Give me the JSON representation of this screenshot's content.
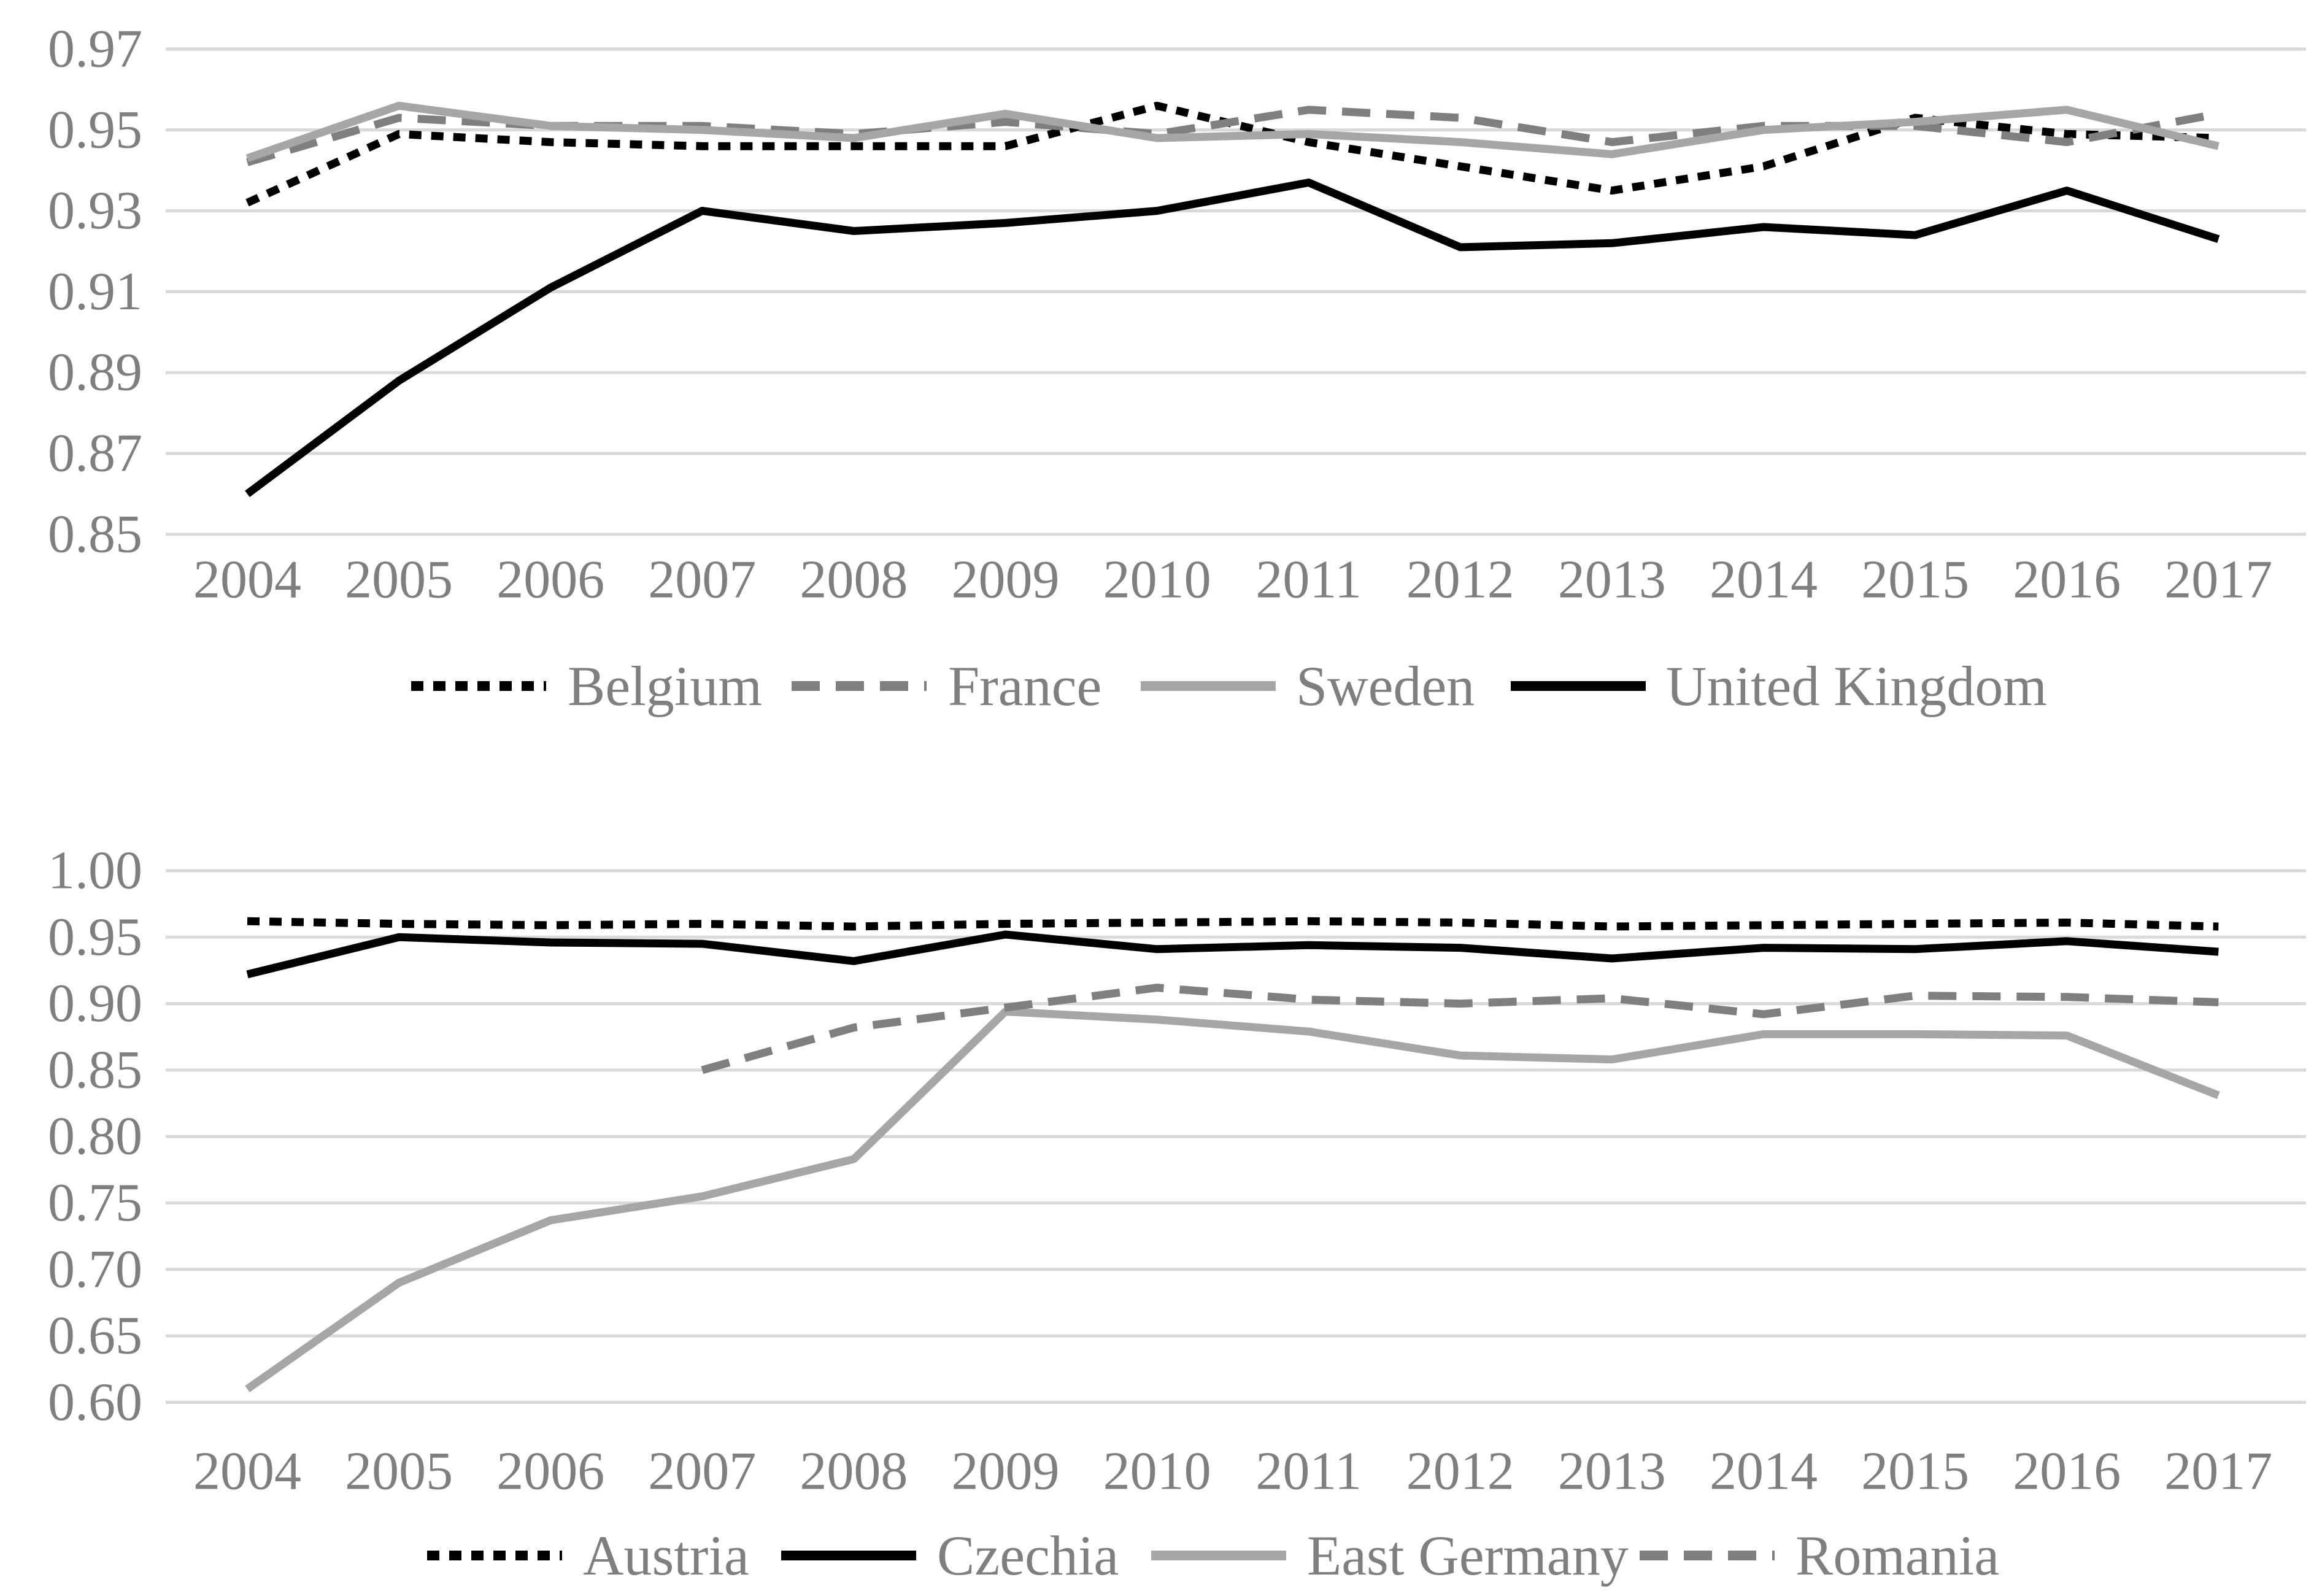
{
  "figure": {
    "background": "#ffffff",
    "description": "Two stacked line charts, years 2004-2017, no titles, legends below each chart"
  },
  "colors": {
    "black_series": "#000000",
    "gray_dashed_series": "#7f7f7f",
    "gray_solid_series": "#a6a6a6",
    "gridline": "#d9d9d9",
    "tick_text": "#7f7f7f",
    "legend_text": "#7f7f7f"
  },
  "chart_data": [
    {
      "id": "top",
      "type": "line",
      "x": [
        "2004",
        "2005",
        "2006",
        "2007",
        "2008",
        "2009",
        "2010",
        "2011",
        "2012",
        "2013",
        "2014",
        "2015",
        "2016",
        "2017"
      ],
      "xlabel": "",
      "ylabel": "",
      "title": "",
      "ylim": [
        0.85,
        0.97
      ],
      "ytick_labels": [
        "0.97",
        "0.95",
        "0.93",
        "0.91",
        "0.89",
        "0.87",
        "0.85"
      ],
      "grid": "horizontal",
      "legend_position": "bottom",
      "series": [
        {
          "name": "Belgium",
          "color": "#000000",
          "style": "dashed-small",
          "values": [
            0.932,
            0.949,
            0.947,
            0.946,
            0.946,
            0.946,
            0.956,
            0.947,
            0.941,
            0.935,
            0.941,
            0.953,
            0.949,
            0.948
          ]
        },
        {
          "name": "France",
          "color": "#7f7f7f",
          "style": "dashed-long",
          "values": [
            0.942,
            0.953,
            0.951,
            0.951,
            0.949,
            0.952,
            0.949,
            0.955,
            0.953,
            0.947,
            0.951,
            0.951,
            0.947,
            0.954
          ]
        },
        {
          "name": "Sweden",
          "color": "#a6a6a6",
          "style": "solid",
          "values": [
            0.943,
            0.956,
            0.951,
            0.95,
            0.948,
            0.954,
            0.948,
            0.949,
            0.947,
            0.944,
            0.95,
            0.952,
            0.955,
            0.946
          ]
        },
        {
          "name": "United Kingdom",
          "color": "#000000",
          "style": "solid",
          "values": [
            0.86,
            0.888,
            0.911,
            0.93,
            0.925,
            0.927,
            0.93,
            0.937,
            0.921,
            0.922,
            0.926,
            0.924,
            0.935,
            0.923
          ]
        }
      ]
    },
    {
      "id": "bottom",
      "type": "line",
      "x": [
        "2004",
        "2005",
        "2006",
        "2007",
        "2008",
        "2009",
        "2010",
        "2011",
        "2012",
        "2013",
        "2014",
        "2015",
        "2016",
        "2017"
      ],
      "xlabel": "",
      "ylabel": "",
      "title": "",
      "ylim": [
        0.6,
        1.0
      ],
      "ytick_labels": [
        "1.00",
        "0.95",
        "0.90",
        "0.85",
        "0.80",
        "0.75",
        "0.70",
        "0.65",
        "0.60"
      ],
      "grid": "horizontal",
      "legend_position": "bottom",
      "series": [
        {
          "name": "Austria",
          "color": "#000000",
          "style": "dashed-small",
          "values": [
            0.962,
            0.96,
            0.959,
            0.96,
            0.958,
            0.96,
            0.961,
            0.962,
            0.961,
            0.958,
            0.959,
            0.96,
            0.961,
            0.958
          ]
        },
        {
          "name": "Czechia",
          "color": "#000000",
          "style": "solid",
          "values": [
            0.922,
            0.95,
            0.946,
            0.945,
            0.932,
            0.952,
            0.941,
            0.944,
            0.942,
            0.934,
            0.942,
            0.941,
            0.947,
            0.939
          ]
        },
        {
          "name": "East Germany",
          "color": "#a6a6a6",
          "style": "solid",
          "values": [
            0.61,
            0.69,
            0.737,
            0.755,
            0.783,
            0.894,
            0.888,
            0.879,
            0.861,
            0.858,
            0.877,
            0.877,
            0.876,
            0.831
          ]
        },
        {
          "name": "Romania",
          "color": "#7f7f7f",
          "style": "dashed-long",
          "values": [
            null,
            null,
            null,
            0.85,
            0.882,
            0.897,
            0.912,
            0.903,
            0.9,
            0.904,
            0.892,
            0.906,
            0.905,
            0.901
          ]
        }
      ]
    }
  ]
}
